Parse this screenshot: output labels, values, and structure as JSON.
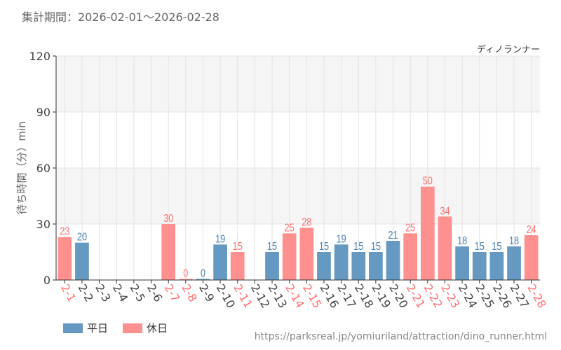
{
  "header": {
    "period": "集計期間：2026-02-01～2026-02-28"
  },
  "footer": {
    "url": "https://parksreal.jp/yomiuriland/attraction/dino_runner.html"
  },
  "colors": {
    "weekday": "#6699c2",
    "holiday": "#ff9090",
    "weekday_label": "#4a82b5",
    "holiday_label": "#ff7070"
  },
  "chart_data": {
    "type": "bar",
    "title": "ディノランナー",
    "ylabel": "待ち時間（分）min",
    "ylim": [
      0,
      120
    ],
    "yticks": [
      0,
      30,
      60,
      90,
      120
    ],
    "grid": true,
    "legend_placement": "bottom-left",
    "legend": [
      {
        "name": "平日",
        "color": "#6699c2"
      },
      {
        "name": "休日",
        "color": "#ff9090"
      }
    ],
    "categories": [
      "2-1",
      "2-2",
      "2-3",
      "2-4",
      "2-5",
      "2-6",
      "2-7",
      "2-8",
      "2-9",
      "2-10",
      "2-11",
      "2-12",
      "2-13",
      "2-14",
      "2-15",
      "2-16",
      "2-17",
      "2-18",
      "2-19",
      "2-20",
      "2-21",
      "2-22",
      "2-23",
      "2-24",
      "2-25",
      "2-26",
      "2-27",
      "2-28"
    ],
    "values": [
      23,
      20,
      null,
      null,
      null,
      null,
      30,
      0,
      0,
      19,
      15,
      null,
      15,
      25,
      28,
      15,
      19,
      15,
      15,
      21,
      25,
      50,
      34,
      18,
      15,
      15,
      18,
      24
    ],
    "holiday": [
      true,
      false,
      false,
      false,
      false,
      false,
      true,
      true,
      false,
      false,
      true,
      false,
      false,
      true,
      true,
      false,
      false,
      false,
      false,
      false,
      true,
      true,
      true,
      false,
      false,
      false,
      false,
      true
    ]
  }
}
